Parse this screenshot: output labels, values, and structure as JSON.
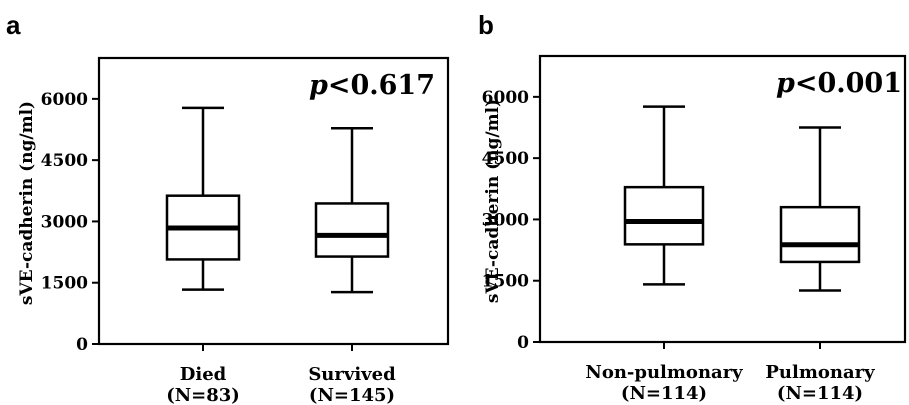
{
  "chart_data": [
    {
      "type": "box",
      "panel_label": "a",
      "ylabel": "sVE-cadherin (ng/ml)",
      "ylim": [
        0,
        7000
      ],
      "yticks": [
        0,
        1500,
        3000,
        4500,
        6000
      ],
      "p_prefix": "p",
      "p_value": "<0.617",
      "categories": [
        {
          "name": "Died",
          "n": "(N=83)",
          "whisker_low": 1330,
          "q1": 2070,
          "median": 2840,
          "q3": 3630,
          "whisker_high": 5780
        },
        {
          "name": "Survived",
          "n": "(N=145)",
          "whisker_low": 1270,
          "q1": 2140,
          "median": 2660,
          "q3": 3440,
          "whisker_high": 5280
        }
      ]
    },
    {
      "type": "box",
      "panel_label": "b",
      "ylabel": "sVE-cadherin (ng/ml)",
      "ylim": [
        0,
        7000
      ],
      "yticks": [
        0,
        1500,
        3000,
        4500,
        6000
      ],
      "p_prefix": "p",
      "p_value": "<0.001",
      "categories": [
        {
          "name": "Non-pulmonary",
          "n": "(N=114)",
          "whisker_low": 1410,
          "q1": 2390,
          "median": 2950,
          "q3": 3790,
          "whisker_high": 5760
        },
        {
          "name": "Pulmonary",
          "n": "(N=114)",
          "whisker_low": 1260,
          "q1": 1960,
          "median": 2380,
          "q3": 3300,
          "whisker_high": 5250
        }
      ]
    }
  ]
}
